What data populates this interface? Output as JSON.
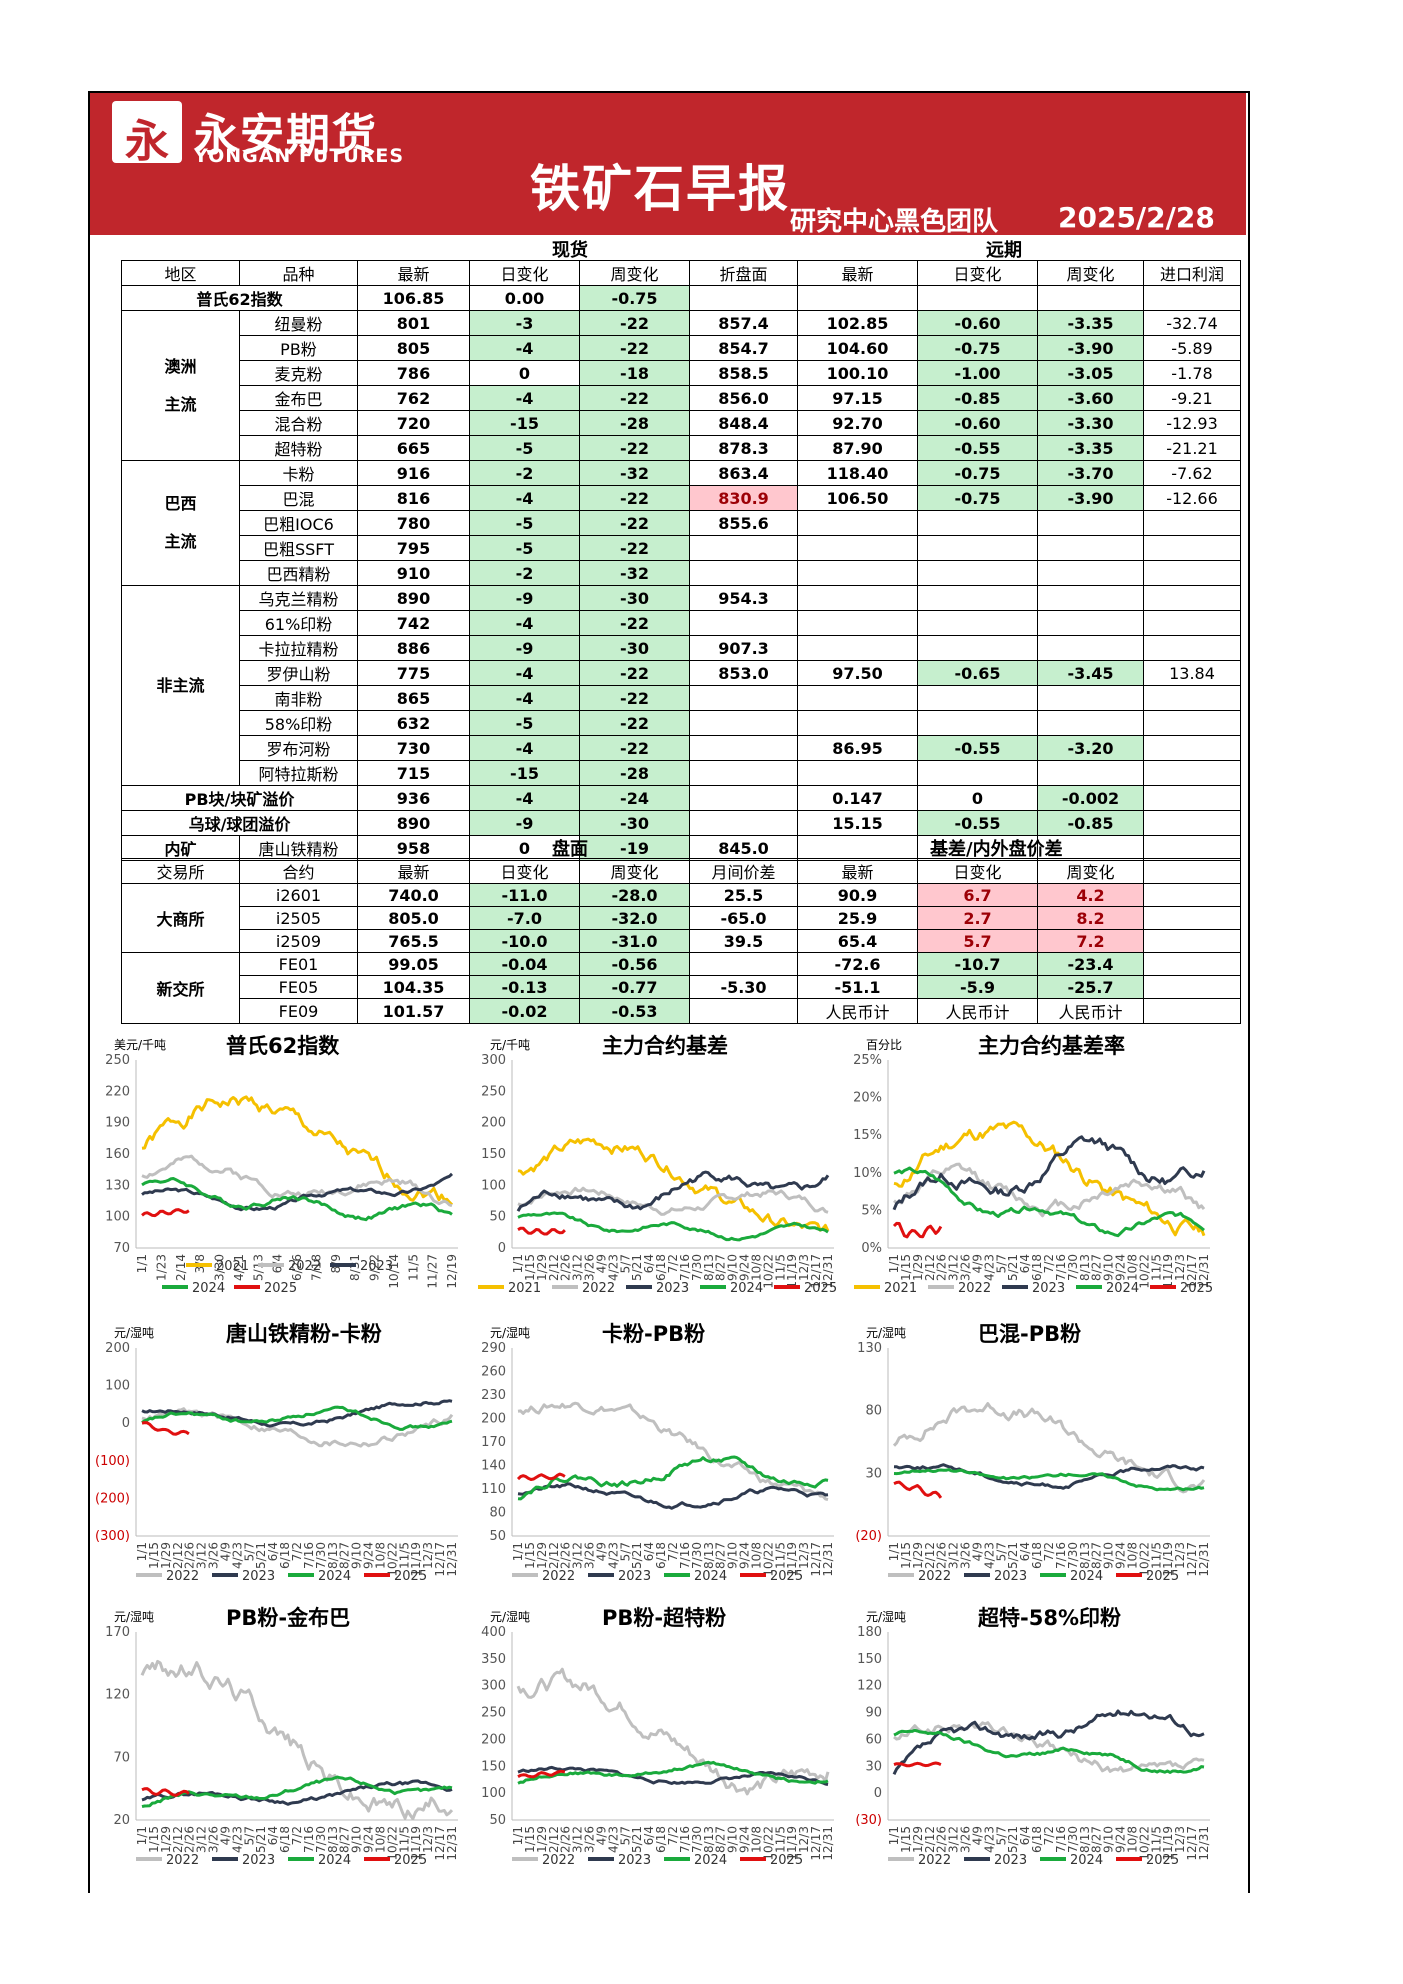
{
  "header": {
    "logo_glyph": "永",
    "brand_cn": "永安期货",
    "brand_en": "YONGAN FUTURES",
    "title": "铁矿石早报",
    "team": "研究中心黑色团队",
    "date": "2025/2/28"
  },
  "sections": {
    "spot": "现货",
    "forward": "远期",
    "futures": "盘面",
    "basis": "基差/内外盘价差"
  },
  "spot_headers": [
    "地区",
    "品种",
    "最新",
    "日变化",
    "周变化",
    "折盘面",
    "最新",
    "日变化",
    "周变化",
    "进口利润"
  ],
  "platts": {
    "label": "普氏62指数",
    "latest": "106.85",
    "day": "0.00",
    "week": "-0.75"
  },
  "groups": [
    {
      "region": [
        "澳洲",
        "主流"
      ],
      "rows": [
        [
          "纽曼粉",
          "801",
          "-3",
          "-22",
          "857.4",
          "102.85",
          "-0.60",
          "-3.35",
          "-32.74"
        ],
        [
          "PB粉",
          "805",
          "-4",
          "-22",
          "854.7",
          "104.60",
          "-0.75",
          "-3.90",
          "-5.89"
        ],
        [
          "麦克粉",
          "786",
          "0",
          "-18",
          "858.5",
          "100.10",
          "-1.00",
          "-3.05",
          "-1.78"
        ],
        [
          "金布巴",
          "762",
          "-4",
          "-22",
          "856.0",
          "97.15",
          "-0.85",
          "-3.60",
          "-9.21"
        ],
        [
          "混合粉",
          "720",
          "-15",
          "-28",
          "848.4",
          "92.70",
          "-0.60",
          "-3.30",
          "-12.93"
        ],
        [
          "超特粉",
          "665",
          "-5",
          "-22",
          "878.3",
          "87.90",
          "-0.55",
          "-3.35",
          "-21.21"
        ]
      ]
    },
    {
      "region": [
        "巴西",
        "主流"
      ],
      "rows": [
        [
          "卡粉",
          "916",
          "-2",
          "-32",
          "863.4",
          "118.40",
          "-0.75",
          "-3.70",
          "-7.62"
        ],
        [
          "巴混",
          "816",
          "-4",
          "-22",
          "830.9",
          "106.50",
          "-0.75",
          "-3.90",
          "-12.66"
        ],
        [
          "巴粗IOC6",
          "780",
          "-5",
          "-22",
          "855.6",
          "",
          "",
          "",
          ""
        ],
        [
          "巴粗SSFT",
          "795",
          "-5",
          "-22",
          "",
          "",
          "",
          "",
          ""
        ],
        [
          "巴西精粉",
          "910",
          "-2",
          "-32",
          "",
          "",
          "",
          "",
          ""
        ]
      ]
    },
    {
      "region": [
        "非主流"
      ],
      "rows": [
        [
          "乌克兰精粉",
          "890",
          "-9",
          "-30",
          "954.3",
          "",
          "",
          "",
          ""
        ],
        [
          "61%印粉",
          "742",
          "-4",
          "-22",
          "",
          "",
          "",
          "",
          ""
        ],
        [
          "卡拉拉精粉",
          "886",
          "-9",
          "-30",
          "907.3",
          "",
          "",
          "",
          ""
        ],
        [
          "罗伊山粉",
          "775",
          "-4",
          "-22",
          "853.0",
          "97.50",
          "-0.65",
          "-3.45",
          "13.84"
        ],
        [
          "南非粉",
          "865",
          "-4",
          "-22",
          "",
          "",
          "",
          "",
          ""
        ],
        [
          "58%印粉",
          "632",
          "-5",
          "-22",
          "",
          "",
          "",
          "",
          ""
        ],
        [
          "罗布河粉",
          "730",
          "-4",
          "-22",
          "",
          "86.95",
          "-0.55",
          "-3.20",
          ""
        ],
        [
          "阿特拉斯粉",
          "715",
          "-15",
          "-28",
          "",
          "",
          "",
          "",
          ""
        ]
      ]
    }
  ],
  "premiums": [
    [
      "PB块/块矿溢价",
      "936",
      "-4",
      "-24",
      "",
      "0.147",
      "0",
      "-0.002",
      ""
    ],
    [
      "乌球/球团溢价",
      "890",
      "-9",
      "-30",
      "",
      "15.15",
      "-0.55",
      "-0.85",
      ""
    ]
  ],
  "domestic": {
    "region": "内矿",
    "name": "唐山铁精粉",
    "latest": "958",
    "day": "0",
    "week": "-19",
    "fold": "845.0"
  },
  "fut_headers": [
    "交易所",
    "合约",
    "最新",
    "日变化",
    "周变化",
    "月间价差",
    "最新",
    "日变化",
    "周变化"
  ],
  "futures": [
    {
      "exchange": "大商所",
      "rows": [
        [
          "i2601",
          "740.0",
          "-11.0",
          "-28.0",
          "25.5",
          "90.9",
          "6.7",
          "4.2"
        ],
        [
          "i2505",
          "805.0",
          "-7.0",
          "-32.0",
          "-65.0",
          "25.9",
          "2.7",
          "8.2"
        ],
        [
          "i2509",
          "765.5",
          "-10.0",
          "-31.0",
          "39.5",
          "65.4",
          "5.7",
          "7.2"
        ]
      ]
    },
    {
      "exchange": "新交所",
      "rows": [
        [
          "FE01",
          "99.05",
          "-0.04",
          "-0.56",
          "",
          "-72.6",
          "-10.7",
          "-23.4"
        ],
        [
          "FE05",
          "104.35",
          "-0.13",
          "-0.77",
          "-5.30",
          "-51.1",
          "-5.9",
          "-25.7"
        ],
        [
          "FE09",
          "101.57",
          "-0.02",
          "-0.53",
          "",
          "人民币计",
          "人民币计",
          "人民币计"
        ]
      ]
    }
  ],
  "colors": {
    "y2021": "#f5c000",
    "y2022": "#bfbfbf",
    "y2023": "#2f3a4f",
    "y2024": "#1aaa3c",
    "y2025": "#e01010"
  },
  "x_ticks_a": [
    "1/1",
    "1/23",
    "2/14",
    "3/8",
    "3/30",
    "4/21",
    "5/13",
    "6/4",
    "6/26",
    "7/18",
    "8/9",
    "8/31",
    "9/22",
    "10/14",
    "11/5",
    "11/27",
    "12/19"
  ],
  "x_ticks_b": [
    "1/1",
    "1/15",
    "1/29",
    "2/12",
    "2/26",
    "3/12",
    "3/26",
    "4/9",
    "4/23",
    "5/7",
    "5/21",
    "6/4",
    "6/18",
    "7/2",
    "7/16",
    "7/30",
    "8/13",
    "8/27",
    "9/10",
    "9/24",
    "10/8",
    "10/22",
    "11/5",
    "11/19",
    "12/3",
    "12/17",
    "12/31"
  ],
  "x_ticks_c": [
    "1/1",
    "1/15",
    "1/29",
    "2/12",
    "2/26",
    "3/12",
    "3/26",
    "4/9",
    "4/23",
    "5/7",
    "5/21",
    "6/4",
    "6/18",
    "7/2",
    "7/16",
    "7/30",
    "8/13",
    "8/27",
    "9/10",
    "9/24",
    "10/8",
    "10/22",
    "11/5",
    "11/19",
    "12/3",
    "12/17",
    "12/31"
  ],
  "chart_data": [
    {
      "type": "line",
      "title": "普氏62指数",
      "unit": "美元/千吨",
      "ylim": [
        70,
        250
      ],
      "yticks": [
        "250",
        "220",
        "190",
        "160",
        "130",
        "100",
        "70"
      ],
      "ticks": "a",
      "series": [
        {
          "name": "2021",
          "color": "#f5c000",
          "seed": 1,
          "mean": 190,
          "amp": 35,
          "start": 165,
          "end": 120
        },
        {
          "name": "2022",
          "color": "#bfbfbf",
          "seed": 2,
          "mean": 135,
          "amp": 20,
          "start": 140,
          "end": 110
        },
        {
          "name": "2023",
          "color": "#2f3a4f",
          "seed": 3,
          "mean": 115,
          "amp": 10,
          "start": 122,
          "end": 138
        },
        {
          "name": "2024",
          "color": "#1aaa3c",
          "seed": 4,
          "mean": 112,
          "amp": 12,
          "start": 132,
          "end": 102
        },
        {
          "name": "2025",
          "color": "#e01010",
          "seed": 5,
          "mean": 104,
          "amp": 3,
          "start": 101,
          "end": 106,
          "len": 0.16
        }
      ]
    },
    {
      "type": "line",
      "title": "主力合约基差",
      "unit": "元/千吨",
      "ylim": [
        0,
        300
      ],
      "yticks": [
        "300",
        "250",
        "200",
        "150",
        "100",
        "50",
        "0"
      ],
      "ticks": "b",
      "series": [
        {
          "name": "2021",
          "color": "#f5c000",
          "seed": 6,
          "mean": 130,
          "amp": 50,
          "start": 120,
          "end": 20
        },
        {
          "name": "2022",
          "color": "#bfbfbf",
          "seed": 7,
          "mean": 80,
          "amp": 30,
          "start": 70,
          "end": 60
        },
        {
          "name": "2023",
          "color": "#2f3a4f",
          "seed": 8,
          "mean": 90,
          "amp": 35,
          "start": 60,
          "end": 110
        },
        {
          "name": "2024",
          "color": "#1aaa3c",
          "seed": 9,
          "mean": 30,
          "amp": 15,
          "start": 50,
          "end": 25
        },
        {
          "name": "2025",
          "color": "#e01010",
          "seed": 10,
          "mean": 25,
          "amp": 6,
          "start": 30,
          "end": 30,
          "len": 0.16
        }
      ]
    },
    {
      "type": "line",
      "title": "主力合约基差率",
      "unit": "百分比",
      "ylim": [
        0,
        25
      ],
      "yticks": [
        "25%",
        "20%",
        "15%",
        "10%",
        "5%",
        "0%"
      ],
      "ticks": "c",
      "series": [
        {
          "name": "2021",
          "color": "#f5c000",
          "seed": 11,
          "mean": 13,
          "amp": 5,
          "start": 8,
          "end": 2
        },
        {
          "name": "2022",
          "color": "#bfbfbf",
          "seed": 12,
          "mean": 8,
          "amp": 4,
          "start": 6,
          "end": 5
        },
        {
          "name": "2023",
          "color": "#2f3a4f",
          "seed": 13,
          "mean": 11,
          "amp": 4,
          "start": 5,
          "end": 11
        },
        {
          "name": "2024",
          "color": "#1aaa3c",
          "seed": 14,
          "mean": 4,
          "amp": 2,
          "start": 10,
          "end": 3
        },
        {
          "name": "2025",
          "color": "#e01010",
          "seed": 15,
          "mean": 2,
          "amp": 1,
          "start": 3,
          "end": 3,
          "len": 0.16
        }
      ]
    },
    {
      "type": "line",
      "title": "唐山铁精粉-卡粉",
      "unit": "元/湿吨",
      "ylim": [
        -300,
        200
      ],
      "yticks": [
        "200",
        "100",
        "0",
        "(100)",
        "(200)",
        "(300)"
      ],
      "ticks": "b",
      "series": [
        {
          "name": "2022",
          "color": "#bfbfbf",
          "seed": 16,
          "mean": -30,
          "amp": 50,
          "start": 20,
          "end": 20
        },
        {
          "name": "2023",
          "color": "#2f3a4f",
          "seed": 17,
          "mean": 10,
          "amp": 25,
          "start": 30,
          "end": 60
        },
        {
          "name": "2024",
          "color": "#1aaa3c",
          "seed": 18,
          "mean": 20,
          "amp": 25,
          "start": 0,
          "end": 0
        },
        {
          "name": "2025",
          "color": "#e01010",
          "seed": 19,
          "mean": -20,
          "amp": 8,
          "start": 0,
          "end": -30,
          "len": 0.16
        }
      ]
    },
    {
      "type": "line",
      "title": "卡粉-PB粉",
      "unit": "元/湿吨",
      "ylim": [
        50,
        290
      ],
      "yticks": [
        "290",
        "260",
        "230",
        "200",
        "170",
        "140",
        "110",
        "80",
        "50"
      ],
      "ticks": "b",
      "series": [
        {
          "name": "2022",
          "color": "#bfbfbf",
          "seed": 20,
          "mean": 180,
          "amp": 30,
          "start": 210,
          "end": 100
        },
        {
          "name": "2023",
          "color": "#2f3a4f",
          "seed": 21,
          "mean": 100,
          "amp": 15,
          "start": 105,
          "end": 100
        },
        {
          "name": "2024",
          "color": "#1aaa3c",
          "seed": 22,
          "mean": 135,
          "amp": 20,
          "start": 100,
          "end": 125
        },
        {
          "name": "2025",
          "color": "#e01010",
          "seed": 23,
          "mean": 125,
          "amp": 5,
          "start": 122,
          "end": 125,
          "len": 0.16
        }
      ]
    },
    {
      "type": "line",
      "title": "巴混-PB粉",
      "unit": "元/湿吨",
      "ylim": [
        -20,
        130
      ],
      "yticks": [
        "130",
        "80",
        "30",
        "(20)"
      ],
      "ticks": "b",
      "series": [
        {
          "name": "2022",
          "color": "#bfbfbf",
          "seed": 24,
          "mean": 70,
          "amp": 25,
          "start": 50,
          "end": 20
        },
        {
          "name": "2023",
          "color": "#2f3a4f",
          "seed": 25,
          "mean": 25,
          "amp": 8,
          "start": 35,
          "end": 35
        },
        {
          "name": "2024",
          "color": "#1aaa3c",
          "seed": 26,
          "mean": 28,
          "amp": 6,
          "start": 30,
          "end": 18
        },
        {
          "name": "2025",
          "color": "#e01010",
          "seed": 27,
          "mean": 18,
          "amp": 4,
          "start": 22,
          "end": 12,
          "len": 0.16
        }
      ]
    },
    {
      "type": "line",
      "title": "PB粉-金布巴",
      "unit": "元/湿吨",
      "ylim": [
        20,
        170
      ],
      "yticks": [
        "170",
        "120",
        "70",
        "20"
      ],
      "ticks": "b",
      "series": [
        {
          "name": "2022",
          "color": "#bfbfbf",
          "seed": 28,
          "mean": 80,
          "amp": 40,
          "start": 140,
          "end": 40
        },
        {
          "name": "2023",
          "color": "#2f3a4f",
          "seed": 29,
          "mean": 40,
          "amp": 8,
          "start": 35,
          "end": 45
        },
        {
          "name": "2024",
          "color": "#1aaa3c",
          "seed": 30,
          "mean": 45,
          "amp": 8,
          "start": 30,
          "end": 45
        },
        {
          "name": "2025",
          "color": "#e01010",
          "seed": 31,
          "mean": 42,
          "amp": 3,
          "start": 44,
          "end": 41,
          "len": 0.16
        }
      ]
    },
    {
      "type": "line",
      "title": "PB粉-超特粉",
      "unit": "元/湿吨",
      "ylim": [
        50,
        400
      ],
      "yticks": [
        "400",
        "350",
        "300",
        "250",
        "200",
        "150",
        "100",
        "50"
      ],
      "ticks": "b",
      "series": [
        {
          "name": "2022",
          "color": "#bfbfbf",
          "seed": 32,
          "mean": 200,
          "amp": 80,
          "start": 300,
          "end": 150
        },
        {
          "name": "2023",
          "color": "#2f3a4f",
          "seed": 33,
          "mean": 130,
          "amp": 15,
          "start": 140,
          "end": 120
        },
        {
          "name": "2024",
          "color": "#1aaa3c",
          "seed": 34,
          "mean": 145,
          "amp": 15,
          "start": 120,
          "end": 125
        },
        {
          "name": "2025",
          "color": "#e01010",
          "seed": 35,
          "mean": 135,
          "amp": 5,
          "start": 130,
          "end": 140,
          "len": 0.16
        }
      ]
    },
    {
      "type": "line",
      "title": "超特-58%印粉",
      "unit": "元/湿吨",
      "ylim": [
        -30,
        180
      ],
      "yticks": [
        "180",
        "150",
        "120",
        "90",
        "60",
        "30",
        "0",
        "(30)"
      ],
      "ticks": "c",
      "series": [
        {
          "name": "2022",
          "color": "#bfbfbf",
          "seed": 36,
          "mean": 50,
          "amp": 30,
          "start": 60,
          "end": 30
        },
        {
          "name": "2023",
          "color": "#2f3a4f",
          "seed": 37,
          "mean": 80,
          "amp": 25,
          "start": 20,
          "end": 65
        },
        {
          "name": "2024",
          "color": "#1aaa3c",
          "seed": 38,
          "mean": 45,
          "amp": 12,
          "start": 65,
          "end": 30
        },
        {
          "name": "2025",
          "color": "#e01010",
          "seed": 39,
          "mean": 32,
          "amp": 2,
          "start": 32,
          "end": 32,
          "len": 0.16
        }
      ]
    }
  ]
}
